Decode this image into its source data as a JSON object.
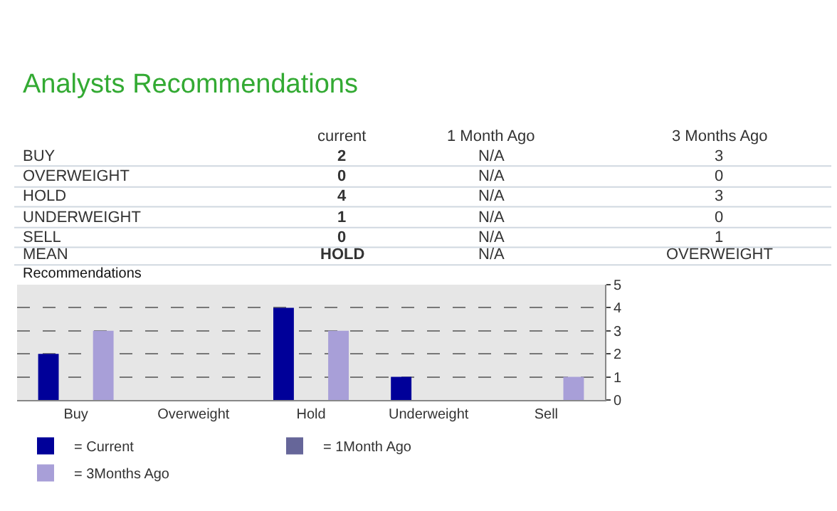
{
  "chart_data": {
    "type": "bar",
    "title": "Analysts Recommendations",
    "subtitle": "Recommendations",
    "categories": [
      "Buy",
      "Overweight",
      "Hold",
      "Underweight",
      "Sell"
    ],
    "series": [
      {
        "name": "= Current",
        "color": "#000099",
        "values": [
          2,
          0,
          4,
          1,
          0
        ]
      },
      {
        "name": "= 1Month Ago",
        "color": "#666699",
        "values": [
          null,
          null,
          null,
          null,
          null
        ]
      },
      {
        "name": "= 3Months Ago",
        "color": "#a89fd8",
        "values": [
          3,
          0,
          3,
          0,
          1
        ]
      }
    ],
    "ylim": [
      0,
      5
    ],
    "yticks": [
      0,
      1,
      2,
      3,
      4,
      5
    ],
    "grid": "y",
    "legend": "bottom",
    "annotations": [
      "current",
      "1 Month Ago",
      "3 Months Ago",
      "BUY",
      "2",
      "N/A",
      "3",
      "OVERWEIGHT",
      "0",
      "N/A",
      "0",
      "HOLD",
      "4",
      "N/A",
      "3",
      "UNDERWEIGHT",
      "1",
      "N/A",
      "0",
      "SELL",
      "0",
      "N/A",
      "1",
      "MEAN",
      "HOLD",
      "N/A",
      "OVERWEIGHT"
    ]
  }
}
